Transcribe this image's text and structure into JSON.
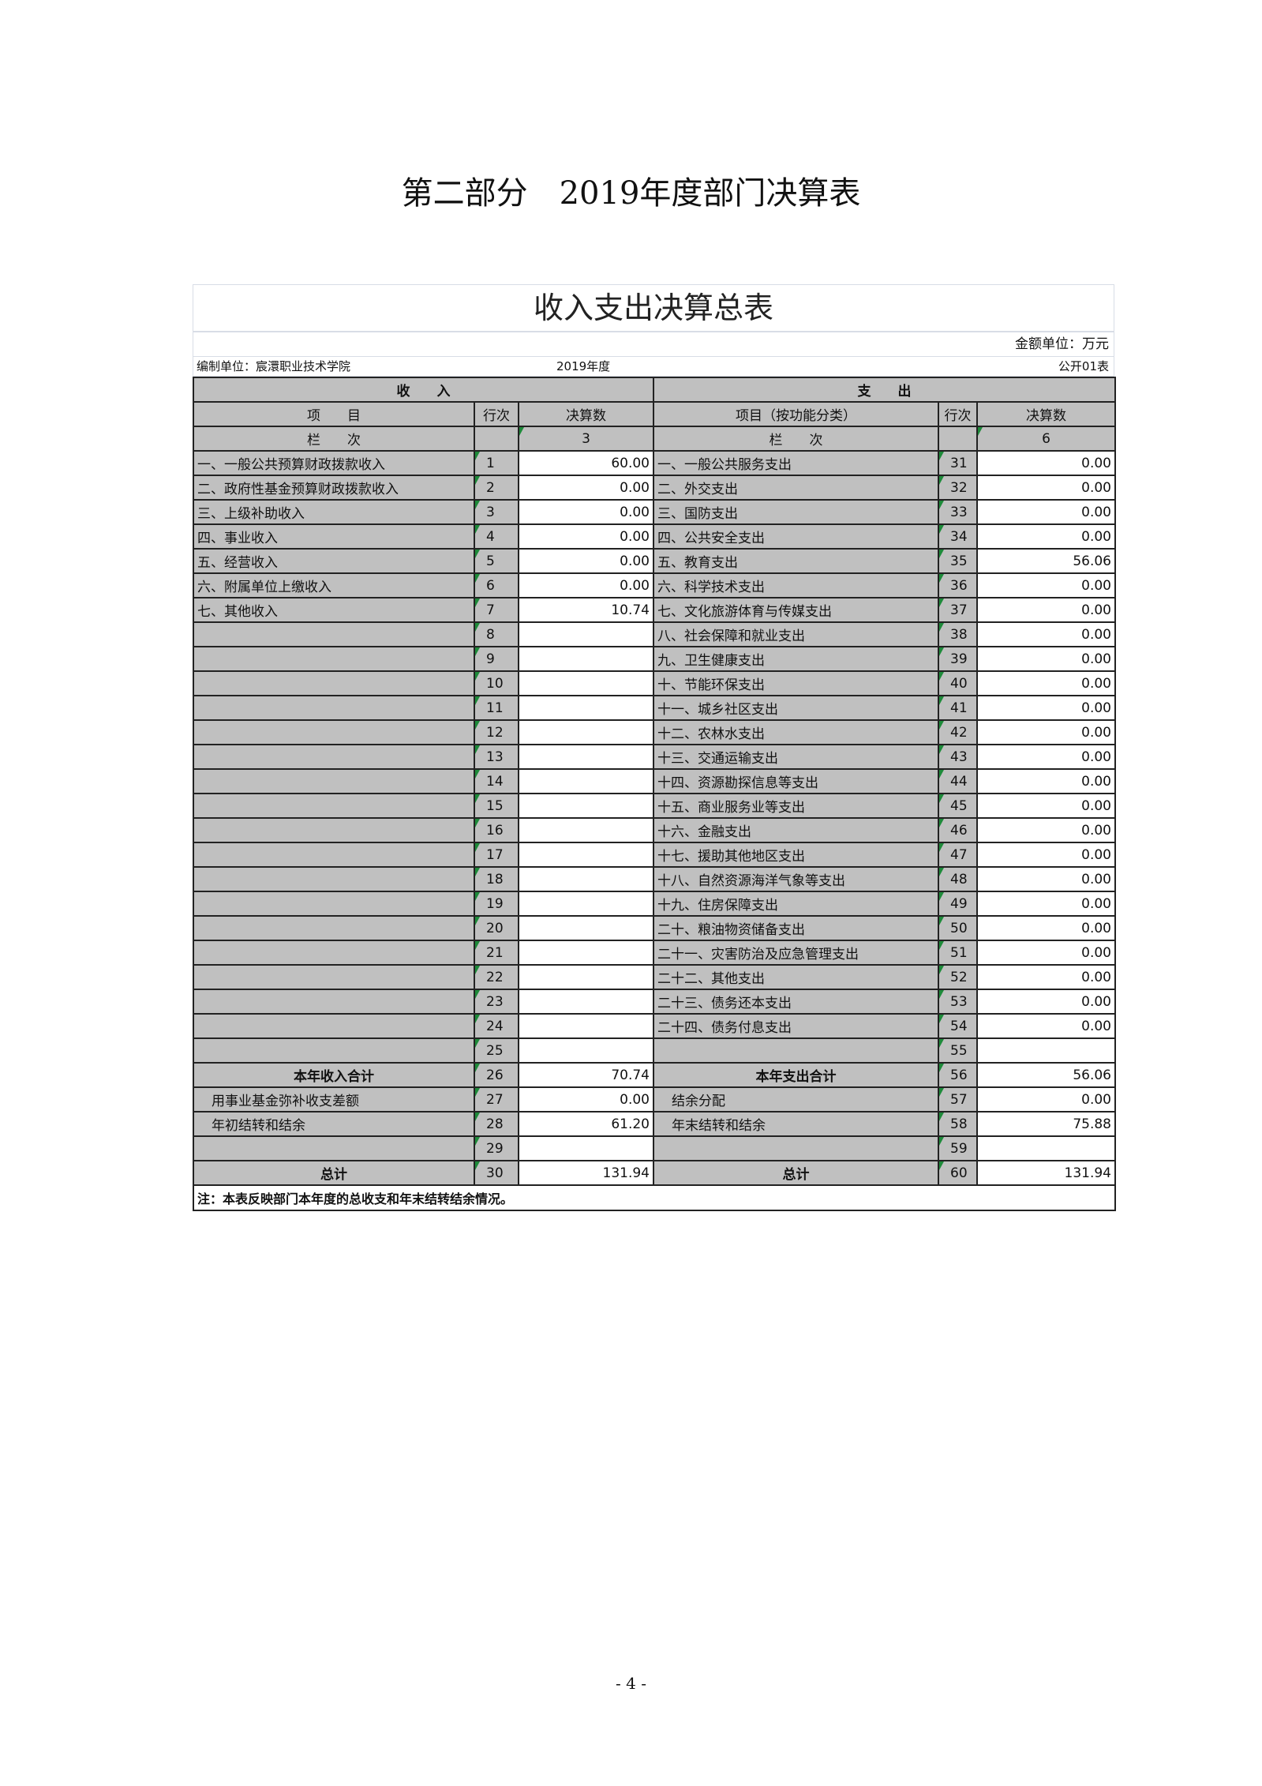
{
  "doc_title": "第二部分　2019年度部门决算表",
  "sheet": {
    "title": "收入支出决算总表",
    "unit": "金额单位：万元",
    "org": "编制单位：宸澴职业技术学院",
    "year": "2019年度",
    "table_no": "公开01表",
    "income_header": "收　　入",
    "expense_header": "支　　出",
    "col_item": "项　　目",
    "col_row": "行次",
    "col_amount": "决算数",
    "col_item_exp": "项目（按功能分类）",
    "col_seq": "栏　　次",
    "col_seq_in": "3",
    "col_seq_out": "6",
    "rows": [
      {
        "in_name": "一、一般公共预算财政拨款收入",
        "in_no": "1",
        "in_val": "60.00",
        "out_name": "一、一般公共服务支出",
        "out_no": "31",
        "out_val": "0.00"
      },
      {
        "in_name": "二、政府性基金预算财政拨款收入",
        "in_no": "2",
        "in_val": "0.00",
        "out_name": "二、外交支出",
        "out_no": "32",
        "out_val": "0.00"
      },
      {
        "in_name": "三、上级补助收入",
        "in_no": "3",
        "in_val": "0.00",
        "out_name": "三、国防支出",
        "out_no": "33",
        "out_val": "0.00"
      },
      {
        "in_name": "四、事业收入",
        "in_no": "4",
        "in_val": "0.00",
        "out_name": "四、公共安全支出",
        "out_no": "34",
        "out_val": "0.00"
      },
      {
        "in_name": "五、经营收入",
        "in_no": "5",
        "in_val": "0.00",
        "out_name": "五、教育支出",
        "out_no": "35",
        "out_val": "56.06"
      },
      {
        "in_name": "六、附属单位上缴收入",
        "in_no": "6",
        "in_val": "0.00",
        "out_name": "六、科学技术支出",
        "out_no": "36",
        "out_val": "0.00"
      },
      {
        "in_name": "七、其他收入",
        "in_no": "7",
        "in_val": "10.74",
        "out_name": "七、文化旅游体育与传媒支出",
        "out_no": "37",
        "out_val": "0.00"
      },
      {
        "in_name": "",
        "in_no": "8",
        "in_val": "",
        "out_name": "八、社会保障和就业支出",
        "out_no": "38",
        "out_val": "0.00"
      },
      {
        "in_name": "",
        "in_no": "9",
        "in_val": "",
        "out_name": "九、卫生健康支出",
        "out_no": "39",
        "out_val": "0.00"
      },
      {
        "in_name": "",
        "in_no": "10",
        "in_val": "",
        "out_name": "十、节能环保支出",
        "out_no": "40",
        "out_val": "0.00"
      },
      {
        "in_name": "",
        "in_no": "11",
        "in_val": "",
        "out_name": "十一、城乡社区支出",
        "out_no": "41",
        "out_val": "0.00"
      },
      {
        "in_name": "",
        "in_no": "12",
        "in_val": "",
        "out_name": "十二、农林水支出",
        "out_no": "42",
        "out_val": "0.00"
      },
      {
        "in_name": "",
        "in_no": "13",
        "in_val": "",
        "out_name": "十三、交通运输支出",
        "out_no": "43",
        "out_val": "0.00"
      },
      {
        "in_name": "",
        "in_no": "14",
        "in_val": "",
        "out_name": "十四、资源勘探信息等支出",
        "out_no": "44",
        "out_val": "0.00"
      },
      {
        "in_name": "",
        "in_no": "15",
        "in_val": "",
        "out_name": "十五、商业服务业等支出",
        "out_no": "45",
        "out_val": "0.00"
      },
      {
        "in_name": "",
        "in_no": "16",
        "in_val": "",
        "out_name": "十六、金融支出",
        "out_no": "46",
        "out_val": "0.00"
      },
      {
        "in_name": "",
        "in_no": "17",
        "in_val": "",
        "out_name": "十七、援助其他地区支出",
        "out_no": "47",
        "out_val": "0.00"
      },
      {
        "in_name": "",
        "in_no": "18",
        "in_val": "",
        "out_name": "十八、自然资源海洋气象等支出",
        "out_no": "48",
        "out_val": "0.00"
      },
      {
        "in_name": "",
        "in_no": "19",
        "in_val": "",
        "out_name": "十九、住房保障支出",
        "out_no": "49",
        "out_val": "0.00"
      },
      {
        "in_name": "",
        "in_no": "20",
        "in_val": "",
        "out_name": "二十、粮油物资储备支出",
        "out_no": "50",
        "out_val": "0.00"
      },
      {
        "in_name": "",
        "in_no": "21",
        "in_val": "",
        "out_name": "二十一、灾害防治及应急管理支出",
        "out_no": "51",
        "out_val": "0.00"
      },
      {
        "in_name": "",
        "in_no": "22",
        "in_val": "",
        "out_name": "二十二、其他支出",
        "out_no": "52",
        "out_val": "0.00"
      },
      {
        "in_name": "",
        "in_no": "23",
        "in_val": "",
        "out_name": "二十三、债务还本支出",
        "out_no": "53",
        "out_val": "0.00"
      },
      {
        "in_name": "",
        "in_no": "24",
        "in_val": "",
        "out_name": "二十四、债务付息支出",
        "out_no": "54",
        "out_val": "0.00"
      },
      {
        "in_name": "",
        "in_no": "25",
        "in_val": "",
        "out_name": "",
        "out_no": "55",
        "out_val": ""
      },
      {
        "in_name": "本年收入合计",
        "in_no": "26",
        "in_val": "70.74",
        "out_name": "本年支出合计",
        "out_no": "56",
        "out_val": "56.06",
        "bold": true
      },
      {
        "in_name": "用事业基金弥补收支差额",
        "in_no": "27",
        "in_val": "0.00",
        "out_name": "结余分配",
        "out_no": "57",
        "out_val": "0.00",
        "indent": true
      },
      {
        "in_name": "年初结转和结余",
        "in_no": "28",
        "in_val": "61.20",
        "out_name": "年末结转和结余",
        "out_no": "58",
        "out_val": "75.88",
        "indent": true
      },
      {
        "in_name": "",
        "in_no": "29",
        "in_val": "",
        "out_name": "",
        "out_no": "59",
        "out_val": ""
      },
      {
        "in_name": "总计",
        "in_no": "30",
        "in_val": "131.94",
        "out_name": "总计",
        "out_no": "60",
        "out_val": "131.94",
        "bold": true
      }
    ],
    "note": "注：本表反映部门本年度的总收支和年末结转结余情况。"
  },
  "page_number": "- 4 -"
}
